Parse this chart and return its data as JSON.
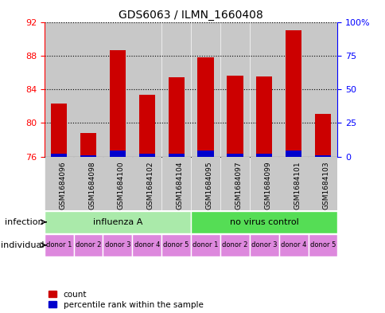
{
  "title": "GDS6063 / ILMN_1660408",
  "samples": [
    "GSM1684096",
    "GSM1684098",
    "GSM1684100",
    "GSM1684102",
    "GSM1684104",
    "GSM1684095",
    "GSM1684097",
    "GSM1684099",
    "GSM1684101",
    "GSM1684103"
  ],
  "red_values": [
    82.3,
    78.8,
    88.6,
    83.3,
    85.4,
    87.8,
    85.6,
    85.5,
    91.0,
    81.1
  ],
  "blue_values": [
    2.0,
    1.0,
    4.5,
    2.0,
    2.0,
    4.5,
    2.0,
    2.0,
    4.5,
    1.0
  ],
  "ymin": 76,
  "ymax": 92,
  "yticks_left": [
    76,
    80,
    84,
    88,
    92
  ],
  "yticks_right": [
    0,
    25,
    50,
    75,
    100
  ],
  "infection_groups": [
    {
      "label": "influenza A",
      "span": [
        0,
        5
      ],
      "color": "#AAEAAA"
    },
    {
      "label": "no virus control",
      "span": [
        5,
        10
      ],
      "color": "#55DD55"
    }
  ],
  "individual_labels": [
    "donor 1",
    "donor 2",
    "donor 3",
    "donor 4",
    "donor 5",
    "donor 1",
    "donor 2",
    "donor 3",
    "donor 4",
    "donor 5"
  ],
  "individual_color": "#DD88DD",
  "bar_width": 0.55,
  "red_color": "#CC0000",
  "blue_color": "#0000CC",
  "col_bg_color": "#C8C8C8",
  "plot_bg": "#FFFFFF"
}
